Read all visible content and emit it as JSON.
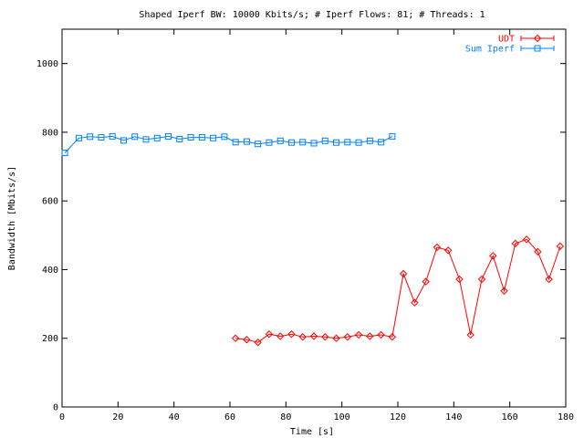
{
  "chart_data": {
    "type": "line",
    "title": "Shaped Iperf BW: 10000 Kbits/s; # Iperf Flows: 81; # Threads: 1",
    "xlabel": "Time [s]",
    "ylabel": "Bandwidth [Mbits/s]",
    "xlim": [
      0,
      180
    ],
    "ylim": [
      0,
      1100
    ],
    "xticks": [
      0,
      20,
      40,
      60,
      80,
      100,
      120,
      140,
      160,
      180
    ],
    "yticks": [
      0,
      200,
      400,
      600,
      800,
      1000
    ],
    "legend_position": "top-right",
    "grid": false,
    "series": [
      {
        "name": "UDT",
        "color": "#ff0000",
        "marker": "diamond",
        "points": [
          [
            62,
            200
          ],
          [
            66,
            196
          ],
          [
            70,
            188
          ],
          [
            74,
            212
          ],
          [
            78,
            206
          ],
          [
            82,
            212
          ],
          [
            86,
            204
          ],
          [
            90,
            206
          ],
          [
            94,
            204
          ],
          [
            98,
            200
          ],
          [
            102,
            204
          ],
          [
            106,
            210
          ],
          [
            110,
            206
          ],
          [
            114,
            210
          ],
          [
            118,
            204
          ],
          [
            122,
            388
          ],
          [
            126,
            304
          ],
          [
            130,
            365
          ],
          [
            134,
            465
          ],
          [
            138,
            456
          ],
          [
            142,
            372
          ],
          [
            146,
            210
          ],
          [
            150,
            372
          ],
          [
            154,
            440
          ],
          [
            158,
            338
          ],
          [
            162,
            476
          ],
          [
            166,
            488
          ],
          [
            170,
            452
          ],
          [
            174,
            372
          ],
          [
            178,
            468
          ]
        ]
      },
      {
        "name": "Sum Iperf",
        "color": "#0080ff",
        "marker": "square",
        "points": [
          [
            1,
            740
          ],
          [
            6,
            783
          ],
          [
            10,
            787
          ],
          [
            14,
            785
          ],
          [
            18,
            788
          ],
          [
            22,
            776
          ],
          [
            26,
            787
          ],
          [
            30,
            779
          ],
          [
            34,
            783
          ],
          [
            38,
            788
          ],
          [
            42,
            780
          ],
          [
            46,
            785
          ],
          [
            50,
            785
          ],
          [
            54,
            783
          ],
          [
            58,
            787
          ],
          [
            62,
            771
          ],
          [
            66,
            773
          ],
          [
            70,
            766
          ],
          [
            74,
            770
          ],
          [
            78,
            775
          ],
          [
            82,
            770
          ],
          [
            86,
            771
          ],
          [
            90,
            768
          ],
          [
            94,
            775
          ],
          [
            98,
            770
          ],
          [
            102,
            771
          ],
          [
            106,
            770
          ],
          [
            110,
            775
          ],
          [
            114,
            771
          ],
          [
            118,
            788
          ]
        ]
      }
    ]
  }
}
